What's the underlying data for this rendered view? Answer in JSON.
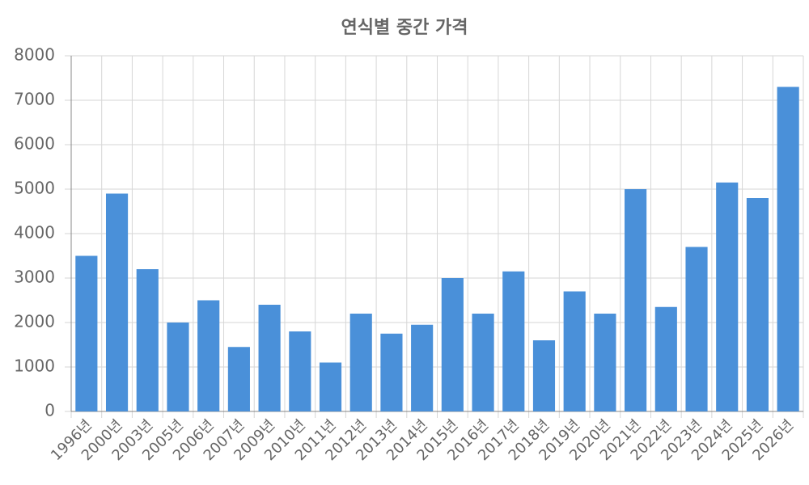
{
  "chart_data": {
    "type": "bar",
    "title": "연식별 중간 가격",
    "categories": [
      "1996년",
      "2000년",
      "2003년",
      "2005년",
      "2006년",
      "2007년",
      "2009년",
      "2010년",
      "2011년",
      "2012년",
      "2013년",
      "2014년",
      "2015년",
      "2016년",
      "2017년",
      "2018년",
      "2019년",
      "2020년",
      "2021년",
      "2022년",
      "2023년",
      "2024년",
      "2025년",
      "2026년"
    ],
    "values": [
      3500,
      4900,
      3200,
      2000,
      2500,
      1450,
      2400,
      1800,
      1100,
      2200,
      1750,
      1950,
      3000,
      2200,
      3150,
      1600,
      2700,
      2200,
      5000,
      2350,
      3700,
      5150,
      4800,
      7300
    ],
    "color": "#4a90d9",
    "ylim": [
      0,
      8000
    ],
    "yticks": [
      0,
      1000,
      2000,
      3000,
      4000,
      5000,
      6000,
      7000,
      8000
    ],
    "grid": true
  }
}
